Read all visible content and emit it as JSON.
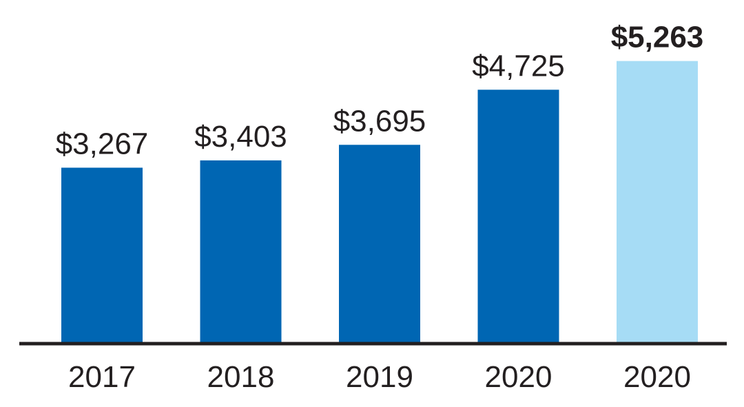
{
  "chart_data": {
    "type": "bar",
    "categories": [
      "2017",
      "2018",
      "2019",
      "2020",
      "2020"
    ],
    "values": [
      3267,
      3403,
      3695,
      4725,
      5263
    ],
    "data_labels": [
      "$3,267",
      "$3,403",
      "$3,695",
      "$4,725",
      "$5,263"
    ],
    "highlight_index": 4,
    "colors": {
      "bar": "#0066b3",
      "highlight_bar": "#a6dcf5",
      "axis": "#231f20",
      "text": "#231f20"
    },
    "title": "",
    "xlabel": "",
    "ylabel": "",
    "grid": false,
    "legend": "none"
  }
}
